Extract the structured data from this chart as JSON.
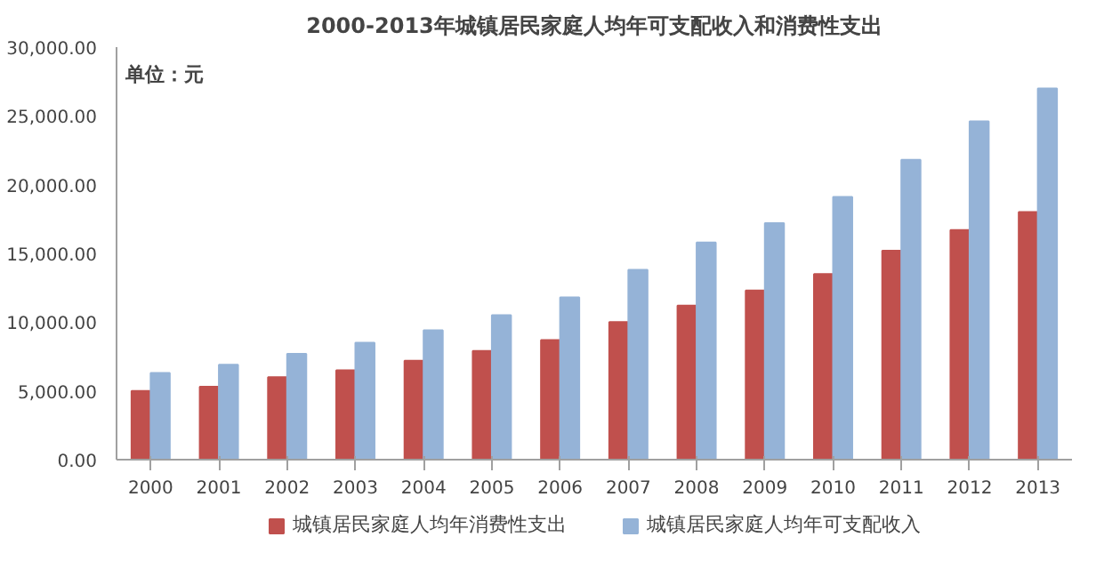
{
  "chart_data": {
    "type": "bar",
    "title": "2000-2013年城镇居民家庭人均年可支配收入和消费性支出",
    "categories": [
      "2000",
      "2001",
      "2002",
      "2003",
      "2004",
      "2005",
      "2006",
      "2007",
      "2008",
      "2009",
      "2010",
      "2011",
      "2012",
      "2013"
    ],
    "series": [
      {
        "name": "城镇居民家庭人均年消费性支出",
        "color": "#c0504d",
        "values": [
          5000,
          5300,
          6000,
          6500,
          7200,
          7900,
          8700,
          10000,
          11200,
          12300,
          13500,
          15200,
          16700,
          18000
        ]
      },
      {
        "name": "城镇居民家庭人均年可支配收入",
        "color": "#95b3d7",
        "values": [
          6300,
          6900,
          7700,
          8500,
          9400,
          10500,
          11800,
          13800,
          15800,
          17200,
          19100,
          21800,
          24600,
          27000
        ]
      }
    ],
    "ylim": [
      0,
      30000
    ],
    "yticks": [
      {
        "value": 0,
        "label": "0.00"
      },
      {
        "value": 5000,
        "label": "5,000.00"
      },
      {
        "value": 10000,
        "label": "10,000.00"
      },
      {
        "value": 15000,
        "label": "15,000.00"
      },
      {
        "value": 20000,
        "label": "20,000.00"
      },
      {
        "value": 25000,
        "label": "25,000.00"
      },
      {
        "value": 30000,
        "label": "30,000.00"
      }
    ],
    "annotations": [
      "单位：元"
    ],
    "grid": false,
    "legend": "bottom"
  }
}
